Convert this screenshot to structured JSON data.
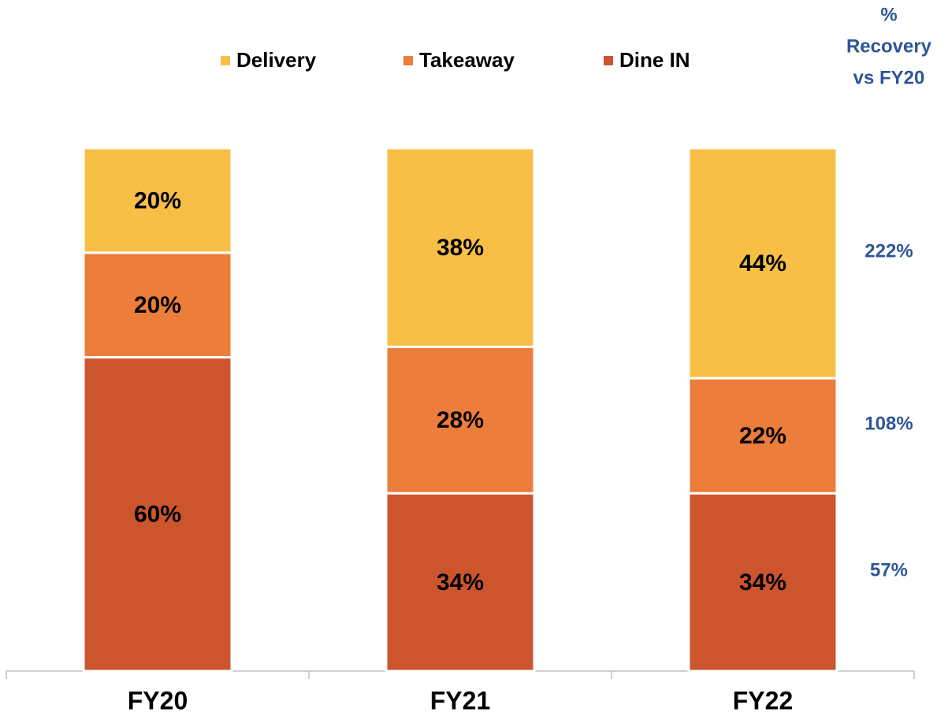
{
  "chart_data": {
    "type": "stacked_bar",
    "categories": [
      "FY20",
      "FY21",
      "FY22"
    ],
    "ylim": [
      0,
      100
    ],
    "series": [
      {
        "name": "Dine IN",
        "color": "#cd552d",
        "values": [
          60,
          34,
          34
        ],
        "value_labels": [
          "60%",
          "34%",
          "34%"
        ],
        "recovery_label": "57%"
      },
      {
        "name": "Takeaway",
        "color": "#ed7d3a",
        "values": [
          20,
          28,
          22
        ],
        "value_labels": [
          "20%",
          "28%",
          "22%"
        ],
        "recovery_label": "108%"
      },
      {
        "name": "Delivery",
        "color": "#f7bf45",
        "values": [
          20,
          38,
          44
        ],
        "value_labels": [
          "20%",
          "38%",
          "44%"
        ],
        "recovery_label": "222%"
      }
    ],
    "recovery_title": [
      "%",
      "Recovery",
      "vs FY20"
    ],
    "legend": "top"
  }
}
